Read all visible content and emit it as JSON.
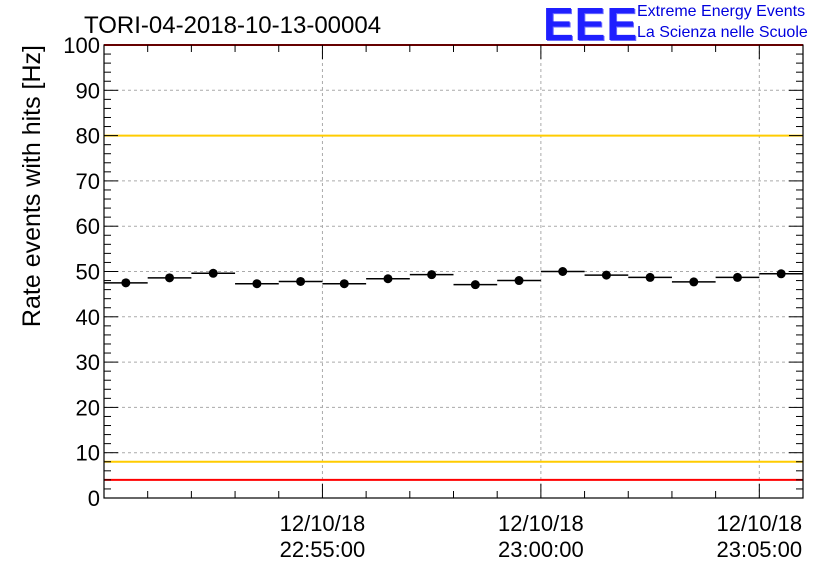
{
  "logo": {
    "text": "EEE",
    "line1": "Extreme Energy Events",
    "line2": "La Scienza nelle Scuole"
  },
  "colors": {
    "marker": "#000000",
    "limit_red": "#ff0000",
    "limit_yellow": "#ffcc00",
    "grid": "#aaaaaa",
    "logo_blue": "#1f1fff"
  },
  "chart_data": {
    "type": "scatter",
    "title": "TORI-04-2018-10-13-00004",
    "ylabel": "Rate events with hits [Hz]",
    "xlabel": "",
    "ylim": [
      0,
      100
    ],
    "yticks": [
      0,
      10,
      20,
      30,
      40,
      50,
      60,
      70,
      80,
      90,
      100
    ],
    "x_unit": "seconds since 22:50:30",
    "xlim": [
      0,
      960
    ],
    "xticks": [
      {
        "x": 300,
        "date": "12/10/18",
        "time": "22:55:00"
      },
      {
        "x": 600,
        "date": "12/10/18",
        "time": "23:00:00"
      },
      {
        "x": 900,
        "date": "12/10/18",
        "time": "23:05:00"
      }
    ],
    "bin_width": 60,
    "series": [
      {
        "name": "rate",
        "x": [
          30,
          90,
          150,
          210,
          270,
          330,
          390,
          450,
          510,
          570,
          630,
          690,
          750,
          810,
          870,
          930
        ],
        "values": [
          47.5,
          48.6,
          49.6,
          47.3,
          47.8,
          47.3,
          48.4,
          49.3,
          47.1,
          48.0,
          50.0,
          49.2,
          48.7,
          47.7,
          48.7,
          49.5
        ]
      }
    ],
    "reference_lines": [
      {
        "y": 100,
        "color": "red"
      },
      {
        "y": 80,
        "color": "yellow"
      },
      {
        "y": 8,
        "color": "yellow"
      },
      {
        "y": 4,
        "color": "red"
      }
    ],
    "grid": true
  }
}
